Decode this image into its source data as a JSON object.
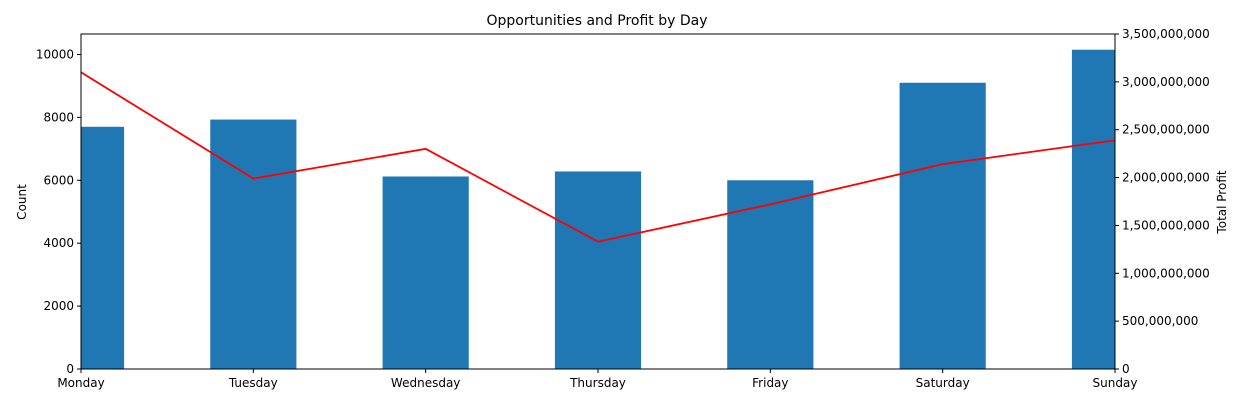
{
  "chart_data": {
    "type": "bar",
    "title": "Opportunities and Profit by Day",
    "xlabel": "",
    "categories": [
      "Monday",
      "Tuesday",
      "Wednesday",
      "Thursday",
      "Friday",
      "Saturday",
      "Sunday"
    ],
    "series": [
      {
        "type": "bar",
        "axis": "left",
        "values": [
          7700,
          7930,
          6120,
          6280,
          6000,
          9100,
          10150
        ],
        "color": "#1f77b4"
      },
      {
        "type": "line",
        "axis": "right",
        "values": [
          3100000000,
          1990000000,
          2300000000,
          1330000000,
          1720000000,
          2140000000,
          2390000000
        ],
        "color": "#ff0000"
      }
    ],
    "ylabel_left": "Count",
    "ylabel_right": "Total Profit",
    "ylim_left": [
      0,
      10650
    ],
    "ylim_right": [
      0,
      3500000000
    ],
    "yticks_left": [
      0,
      2000,
      4000,
      6000,
      8000,
      10000
    ],
    "yticks_left_labels": [
      "0",
      "2000",
      "4000",
      "6000",
      "8000",
      "10000"
    ],
    "yticks_right": [
      0,
      500000000,
      1000000000,
      1500000000,
      2000000000,
      2500000000,
      3000000000,
      3500000000
    ],
    "yticks_right_labels": [
      "0",
      "500,000,000",
      "1,000,000,000",
      "1,500,000,000",
      "2,000,000,000",
      "2,500,000,000",
      "3,000,000,000",
      "3,500,000,000"
    ],
    "grid": false,
    "legend": null
  }
}
